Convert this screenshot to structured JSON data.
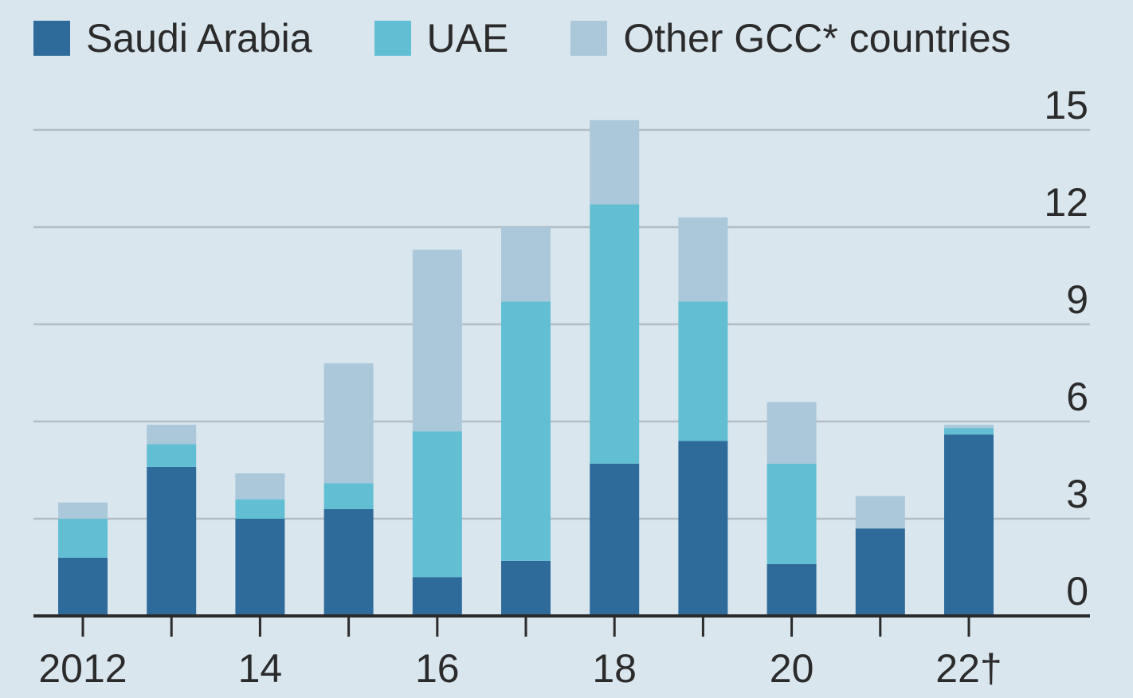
{
  "chart_data": {
    "type": "bar",
    "stacked": true,
    "categories": [
      "2012",
      "2013",
      "2014",
      "2015",
      "2016",
      "2017",
      "2018",
      "2019",
      "2020",
      "2021",
      "2022"
    ],
    "x_tick_labels": [
      {
        "category": "2012",
        "label": "2012"
      },
      {
        "category": "2014",
        "label": "14"
      },
      {
        "category": "2016",
        "label": "16"
      },
      {
        "category": "2018",
        "label": "18"
      },
      {
        "category": "2020",
        "label": "20"
      },
      {
        "category": "2022",
        "label": "22†"
      }
    ],
    "series": [
      {
        "name": "Saudi Arabia",
        "color": "#2f6b9a",
        "values": [
          1.8,
          4.6,
          3.0,
          3.3,
          1.2,
          1.7,
          4.7,
          5.4,
          1.6,
          2.7,
          5.6
        ]
      },
      {
        "name": "UAE",
        "color": "#62bfd3",
        "values": [
          1.2,
          0.7,
          0.6,
          0.8,
          4.5,
          8.0,
          8.0,
          4.3,
          3.1,
          0.0,
          0.2
        ]
      },
      {
        "name": "Other GCC* countries",
        "color": "#aac8da",
        "values": [
          0.5,
          0.6,
          0.8,
          3.7,
          5.6,
          2.3,
          2.6,
          2.6,
          1.9,
          1.0,
          0.1
        ]
      }
    ],
    "ylim": [
      0,
      15
    ],
    "yticks": [
      0,
      3,
      6,
      9,
      12,
      15
    ],
    "y_axis_side": "right",
    "grid": true,
    "legend_position": "top",
    "title": "",
    "xlabel": "",
    "ylabel": ""
  },
  "colors": {
    "background": "#dae6ee",
    "gridline": "#b3bcc4",
    "axis": "#2b2b2b"
  }
}
